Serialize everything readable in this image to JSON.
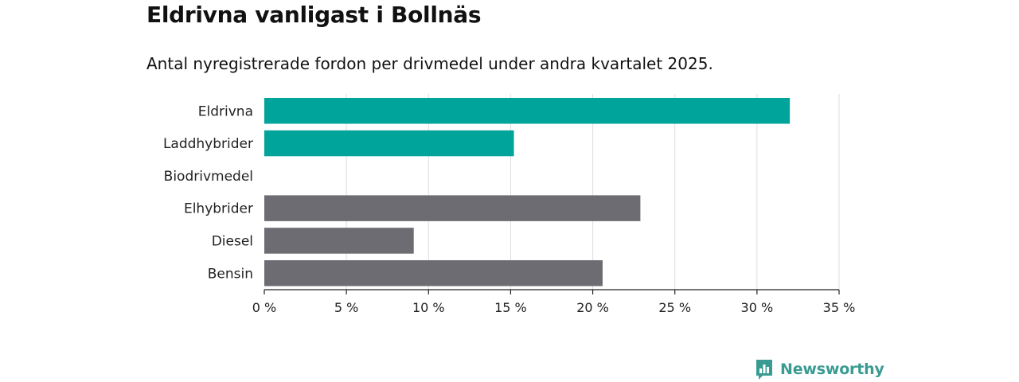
{
  "header": {
    "title": "Eldrivna vanligast i Bollnäs",
    "subtitle": "Antal nyregistrerade fordon per drivmedel under andra kvartalet 2025."
  },
  "chart_data": {
    "type": "bar",
    "orientation": "horizontal",
    "categories": [
      "Eldrivna",
      "Laddhybrider",
      "Biodrivmedel",
      "Elhybrider",
      "Diesel",
      "Bensin"
    ],
    "values": [
      32.0,
      15.2,
      0,
      22.9,
      9.1,
      20.6
    ],
    "bar_colors": [
      "#00a49a",
      "#00a49a",
      "#00a49a",
      "#6d6c72",
      "#6d6c72",
      "#6d6c72"
    ],
    "title": "Eldrivna vanligast i Bollnäs",
    "subtitle": "Antal nyregistrerade fordon per drivmedel under andra kvartalet 2025.",
    "xlabel": "",
    "ylabel": "",
    "xlim": [
      0,
      35
    ],
    "x_ticks": [
      0,
      5,
      10,
      15,
      20,
      25,
      30,
      35
    ],
    "x_tick_labels": [
      "0 %",
      "5 %",
      "10 %",
      "15 %",
      "20 %",
      "25 %",
      "30 %",
      "35 %"
    ],
    "grid": true,
    "legend": "none"
  },
  "footer": {
    "brand": "Newsworthy",
    "brand_icon": "newsworthy-logo-icon",
    "brand_color": "#3a9b93"
  }
}
